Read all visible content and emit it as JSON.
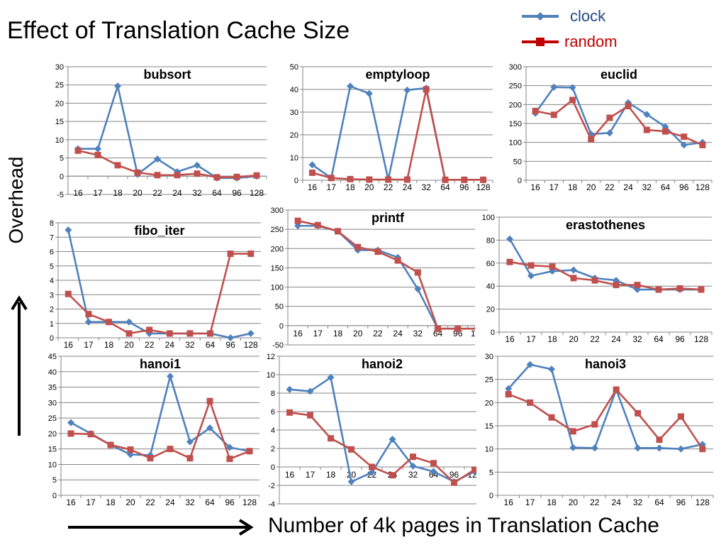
{
  "title": "Effect of Translation Cache Size",
  "ylabel": "Overhead",
  "xlabel": "Number of 4k pages in Translation Cache",
  "legend": {
    "items": [
      {
        "label": "clock",
        "color": "#4f81bd",
        "marker": "diamond"
      },
      {
        "label": "random",
        "color": "#c0504d",
        "marker": "square"
      }
    ]
  },
  "chart_data": [
    {
      "type": "line",
      "title": "bubsort",
      "categories": [
        "16",
        "17",
        "18",
        "20",
        "22",
        "24",
        "32",
        "64",
        "96",
        "128"
      ],
      "ylim": [
        -5,
        30
      ],
      "yticks": [
        -5,
        0,
        5,
        10,
        15,
        20,
        25,
        30
      ],
      "series": [
        {
          "name": "clock",
          "values": [
            7.5,
            7.5,
            24.7,
            0.5,
            4.7,
            1.2,
            3,
            -0.5,
            -0.5,
            0
          ]
        },
        {
          "name": "random",
          "values": [
            7,
            5.8,
            3,
            1,
            0.3,
            0.3,
            0.7,
            -0.3,
            -0.2,
            0.2
          ]
        }
      ]
    },
    {
      "type": "line",
      "title": "emptyloop",
      "categories": [
        "16",
        "17",
        "18",
        "20",
        "22",
        "24",
        "32",
        "64",
        "96",
        "128"
      ],
      "ylim": [
        0,
        50
      ],
      "yticks": [
        0,
        10,
        20,
        30,
        40,
        50
      ],
      "series": [
        {
          "name": "clock",
          "values": [
            6.8,
            1,
            41.4,
            38.2,
            0.3,
            39.7,
            40.6,
            0.2,
            0.2,
            0.2
          ]
        },
        {
          "name": "random",
          "values": [
            3.3,
            1,
            0.5,
            0.3,
            0.3,
            0.3,
            40,
            0.2,
            0.2,
            0.2
          ]
        }
      ]
    },
    {
      "type": "line",
      "title": "euclid",
      "categories": [
        "16",
        "17",
        "18",
        "20",
        "22",
        "24",
        "32",
        "64",
        "96",
        "128"
      ],
      "ylim": [
        0,
        300
      ],
      "yticks": [
        0,
        50,
        100,
        150,
        200,
        250,
        300
      ],
      "series": [
        {
          "name": "clock",
          "values": [
            177,
            246,
            245,
            122,
            125,
            205,
            174,
            141,
            93,
            100
          ]
        },
        {
          "name": "random",
          "values": [
            183,
            173,
            212,
            108,
            165,
            196,
            133,
            129,
            115,
            93
          ]
        }
      ]
    },
    {
      "type": "line",
      "title": "fibo_iter",
      "categories": [
        "16",
        "17",
        "18",
        "20",
        "22",
        "24",
        "32",
        "64",
        "96",
        "128"
      ],
      "ylim": [
        0,
        8
      ],
      "yticks": [
        0,
        1,
        2,
        3,
        4,
        5,
        6,
        7,
        8
      ],
      "series": [
        {
          "name": "clock",
          "values": [
            7.5,
            1.1,
            1.1,
            1.1,
            0.3,
            0.3,
            0.3,
            0.3,
            0,
            0.3
          ]
        },
        {
          "name": "random",
          "values": [
            3.05,
            1.65,
            1.1,
            0.3,
            0.55,
            0.3,
            0.3,
            0.3,
            5.85,
            5.85
          ]
        }
      ]
    },
    {
      "type": "line",
      "title": "printf",
      "categories": [
        "16",
        "17",
        "18",
        "20",
        "22",
        "24",
        "32",
        "64",
        "96",
        "128"
      ],
      "ylim": [
        -50,
        300
      ],
      "yticks": [
        -50,
        0,
        50,
        100,
        150,
        200,
        250,
        300
      ],
      "series": [
        {
          "name": "clock",
          "values": [
            259,
            259,
            245,
            196,
            196,
            177,
            95,
            -8,
            -8,
            -8
          ]
        },
        {
          "name": "random",
          "values": [
            272,
            261,
            245,
            204,
            192,
            169,
            138,
            -8,
            -8,
            -8
          ]
        }
      ]
    },
    {
      "type": "line",
      "title": "erastothenes",
      "categories": [
        "16",
        "17",
        "18",
        "20",
        "22",
        "24",
        "32",
        "64",
        "96",
        "128"
      ],
      "ylim": [
        0,
        100
      ],
      "yticks": [
        0,
        20,
        40,
        60,
        80,
        100
      ],
      "series": [
        {
          "name": "clock",
          "values": [
            81,
            49,
            53,
            54,
            47,
            45,
            37,
            37,
            37,
            37
          ]
        },
        {
          "name": "random",
          "values": [
            61,
            58,
            57,
            47,
            45,
            41,
            41,
            37,
            38,
            37
          ]
        }
      ]
    },
    {
      "type": "line",
      "title": "hanoi1",
      "categories": [
        "16",
        "17",
        "18",
        "20",
        "22",
        "24",
        "32",
        "64",
        "96",
        "128"
      ],
      "ylim": [
        0,
        45
      ],
      "yticks": [
        0,
        5,
        10,
        15,
        20,
        25,
        30,
        35,
        40,
        45
      ],
      "series": [
        {
          "name": "clock",
          "values": [
            23.5,
            20,
            16.3,
            13.2,
            13,
            38.5,
            17.3,
            21.8,
            15.5,
            14.3
          ]
        },
        {
          "name": "random",
          "values": [
            20,
            19.8,
            16.3,
            14.8,
            12,
            15,
            12,
            30.5,
            11.8,
            14.3
          ]
        }
      ]
    },
    {
      "type": "line",
      "title": "hanoi2",
      "categories": [
        "16",
        "17",
        "18",
        "20",
        "22",
        "24",
        "32",
        "64",
        "96",
        "128"
      ],
      "ylim": [
        -4,
        12
      ],
      "yticks": [
        -4,
        -2,
        0,
        2,
        4,
        6,
        8,
        10,
        12
      ],
      "series": [
        {
          "name": "clock",
          "values": [
            8.4,
            8.2,
            9.7,
            -1.6,
            -0.6,
            3,
            0.1,
            -0.5,
            -1.6,
            -0.5
          ]
        },
        {
          "name": "random",
          "values": [
            5.9,
            5.6,
            3.1,
            1.9,
            0,
            -0.9,
            1.1,
            0.4,
            -1.7,
            -0.3
          ]
        }
      ]
    },
    {
      "type": "line",
      "title": "hanoi3",
      "categories": [
        "16",
        "17",
        "18",
        "20",
        "22",
        "24",
        "32",
        "64",
        "96",
        "128"
      ],
      "ylim": [
        0,
        30
      ],
      "yticks": [
        0,
        5,
        10,
        15,
        20,
        25,
        30
      ],
      "series": [
        {
          "name": "clock",
          "values": [
            23,
            28.2,
            27.2,
            10.3,
            10.2,
            22.8,
            10.2,
            10.2,
            10,
            11
          ]
        },
        {
          "name": "random",
          "values": [
            21.8,
            20,
            16.8,
            13.8,
            15.3,
            22.8,
            17.7,
            12,
            17,
            10
          ]
        }
      ]
    }
  ]
}
